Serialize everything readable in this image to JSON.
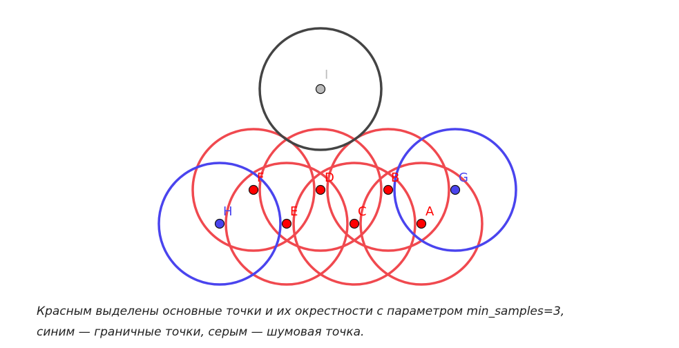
{
  "colors": {
    "core": "#ff0000",
    "core_ring": "#f0494f",
    "border": "#4a44ee",
    "noise_fill": "#bbbbbb",
    "noise_ring": "#444444",
    "noise_label": "#bdbdbd"
  },
  "points": [
    {
      "label": "A",
      "kind": "core"
    },
    {
      "label": "B",
      "kind": "core"
    },
    {
      "label": "C",
      "kind": "core"
    },
    {
      "label": "D",
      "kind": "core"
    },
    {
      "label": "E",
      "kind": "core"
    },
    {
      "label": "F",
      "kind": "core"
    },
    {
      "label": "G",
      "kind": "border"
    },
    {
      "label": "H",
      "kind": "border"
    },
    {
      "label": "I",
      "kind": "noise"
    }
  ],
  "caption": {
    "line1": "Красным выделены основные точки и их окрестности с параметром min_samples=3,",
    "line2": "синим — граничные точки, серым — шумовая точка."
  }
}
